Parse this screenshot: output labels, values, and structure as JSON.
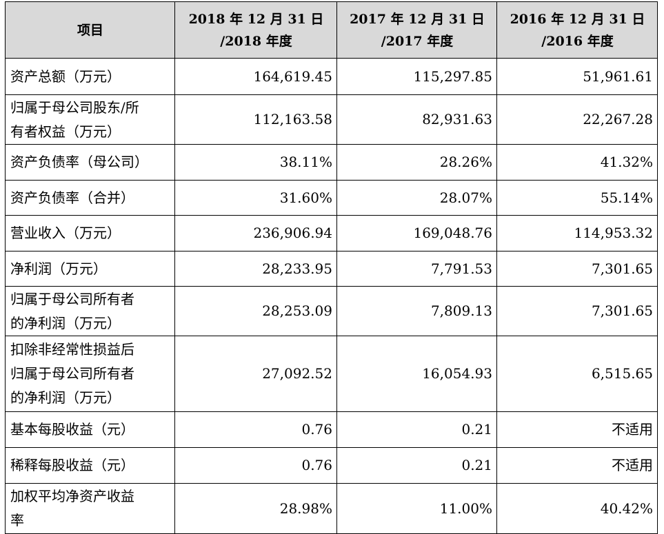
{
  "table": {
    "headers": [
      "项目",
      "2018 年 12 月 31 日\n/2018 年度",
      "2017 年 12 月 31 日\n/2017 年度",
      "2016 年 12 月 31 日\n/2016 年度"
    ],
    "rows": [
      {
        "label": "资产总额（万元）",
        "v2018": "164,619.45",
        "v2017": "115,297.85",
        "v2016": "51,961.61"
      },
      {
        "label": "归属于母公司股东/所\n有者权益（万元）",
        "v2018": "112,163.58",
        "v2017": "82,931.63",
        "v2016": "22,267.28"
      },
      {
        "label": "资产负债率（母公司）",
        "v2018": "38.11%",
        "v2017": "28.26%",
        "v2016": "41.32%"
      },
      {
        "label": "资产负债率（合并）",
        "v2018": "31.60%",
        "v2017": "28.07%",
        "v2016": "55.14%"
      },
      {
        "label": "营业收入（万元）",
        "v2018": "236,906.94",
        "v2017": "169,048.76",
        "v2016": "114,953.32"
      },
      {
        "label": "净利润（万元）",
        "v2018": "28,233.95",
        "v2017": "7,791.53",
        "v2016": "7,301.65"
      },
      {
        "label": "归属于母公司所有者\n的净利润（万元）",
        "v2018": "28,253.09",
        "v2017": "7,809.13",
        "v2016": "7,301.65"
      },
      {
        "label": "扣除非经常性损益后\n归属于母公司所有者\n的净利润（万元）",
        "v2018": "27,092.52",
        "v2017": "16,054.93",
        "v2016": "6,515.65"
      },
      {
        "label": "基本每股收益（元）",
        "v2018": "0.76",
        "v2017": "0.21",
        "v2016": "不适用"
      },
      {
        "label": "稀释每股收益（元）",
        "v2018": "0.76",
        "v2017": "0.21",
        "v2016": "不适用"
      },
      {
        "label": "加权平均净资产收益\n率",
        "v2018": "28.98%",
        "v2017": "11.00%",
        "v2016": "40.42%"
      }
    ]
  }
}
